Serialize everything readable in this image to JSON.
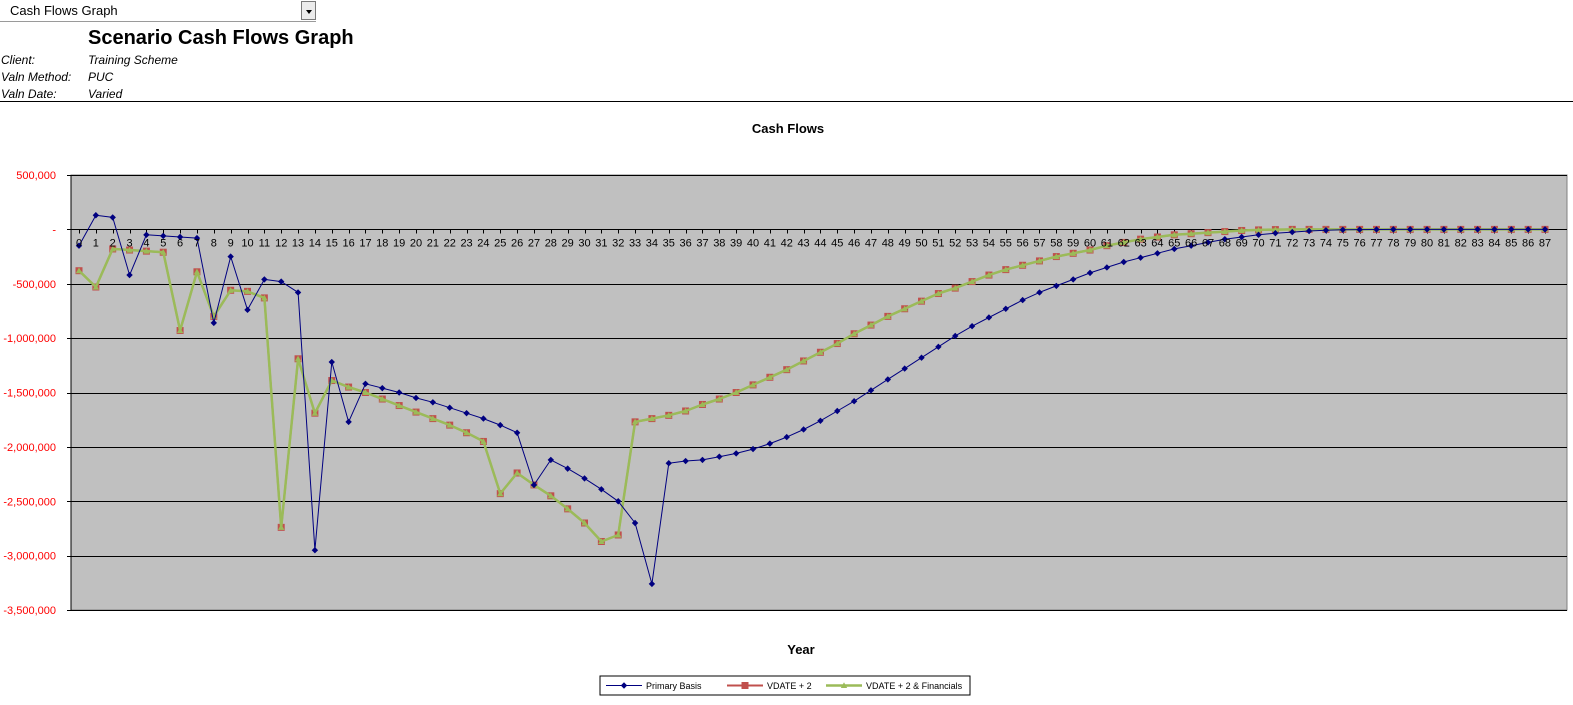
{
  "toolbar": {
    "dropdown_label": "Cash Flows Graph"
  },
  "header": {
    "title": "Scenario Cash Flows Graph",
    "client_label": "Client:",
    "client_value": "Training Scheme",
    "method_label": "Valn Method:",
    "method_value": "PUC",
    "date_label": "Valn Date:",
    "date_value": "Varied"
  },
  "chart_data": {
    "type": "line",
    "title": "Cash Flows",
    "xlabel": "Year",
    "ylabel": "",
    "ylim": [
      -3500000,
      500000
    ],
    "yticks": [
      500000,
      0,
      -500000,
      -1000000,
      -1500000,
      -2000000,
      -2500000,
      -3000000,
      -3500000
    ],
    "ytick_labels": [
      "500,000",
      "-",
      "-500,000",
      "-1,000,000",
      "-1,500,000",
      "-2,000,000",
      "-2,500,000",
      "-3,000,000",
      "-3,500,000"
    ],
    "x": [
      0,
      1,
      2,
      3,
      4,
      5,
      6,
      7,
      8,
      9,
      10,
      11,
      12,
      13,
      14,
      15,
      16,
      17,
      18,
      19,
      20,
      21,
      22,
      23,
      24,
      25,
      26,
      27,
      28,
      29,
      30,
      31,
      32,
      33,
      34,
      35,
      36,
      37,
      38,
      39,
      40,
      41,
      42,
      43,
      44,
      45,
      46,
      47,
      48,
      49,
      50,
      51,
      52,
      53,
      54,
      55,
      56,
      57,
      58,
      59,
      60,
      61,
      62,
      63,
      64,
      65,
      66,
      67,
      68,
      69,
      70,
      71,
      72,
      73,
      74,
      75,
      76,
      77,
      78,
      79,
      80,
      81,
      82,
      83,
      84,
      85,
      86,
      87
    ],
    "grid": true,
    "legend": "bottom",
    "colors": {
      "plot_bg": "#c0c0c0",
      "primary": "#000080",
      "vdate2_line": "#c0504d",
      "vdate2_fin": "#9bbb59",
      "tick_y": "#ff0000"
    },
    "series": [
      {
        "name": "Primary Basis",
        "values": [
          -150000,
          130000,
          110000,
          -420000,
          -50000,
          -60000,
          -70000,
          -80000,
          -860000,
          -250000,
          -740000,
          -460000,
          -480000,
          -580000,
          -2950000,
          -1220000,
          -1770000,
          -1420000,
          -1460000,
          -1500000,
          -1550000,
          -1590000,
          -1640000,
          -1690000,
          -1740000,
          -1800000,
          -1870000,
          -2350000,
          -2120000,
          -2200000,
          -2290000,
          -2390000,
          -2500000,
          -2700000,
          -3260000,
          -2150000,
          -2130000,
          -2120000,
          -2090000,
          -2060000,
          -2020000,
          -1970000,
          -1910000,
          -1840000,
          -1760000,
          -1670000,
          -1580000,
          -1480000,
          -1380000,
          -1280000,
          -1180000,
          -1080000,
          -980000,
          -890000,
          -810000,
          -730000,
          -650000,
          -580000,
          -520000,
          -460000,
          -400000,
          -350000,
          -300000,
          -260000,
          -220000,
          -180000,
          -150000,
          -120000,
          -90000,
          -70000,
          -50000,
          -35000,
          -25000,
          -15000,
          -8000,
          -4000,
          -2000,
          -1000,
          0,
          0,
          0,
          0,
          0,
          0,
          0,
          0,
          0,
          0
        ]
      },
      {
        "name": "VDATE + 2",
        "values": [
          -380000,
          -530000,
          -180000,
          -190000,
          -200000,
          -210000,
          -930000,
          -390000,
          -800000,
          -560000,
          -570000,
          -630000,
          -2740000,
          -1190000,
          -1690000,
          -1390000,
          -1450000,
          -1500000,
          -1560000,
          -1620000,
          -1680000,
          -1740000,
          -1800000,
          -1870000,
          -1950000,
          -2430000,
          -2240000,
          -2350000,
          -2450000,
          -2570000,
          -2700000,
          -2870000,
          -2810000,
          -1770000,
          -1740000,
          -1710000,
          -1670000,
          -1610000,
          -1560000,
          -1500000,
          -1430000,
          -1360000,
          -1290000,
          -1210000,
          -1130000,
          -1050000,
          -960000,
          -880000,
          -800000,
          -730000,
          -660000,
          -590000,
          -540000,
          -480000,
          -420000,
          -370000,
          -330000,
          -290000,
          -250000,
          -220000,
          -190000,
          -150000,
          -120000,
          -90000,
          -70000,
          -50000,
          -40000,
          -30000,
          -20000,
          -10000,
          -5000,
          -2000,
          0,
          0,
          0,
          0,
          0,
          0,
          0,
          0,
          0,
          0,
          0,
          0,
          0,
          0,
          0,
          0
        ]
      },
      {
        "name": "VDATE + 2 & Financials",
        "values": [
          -380000,
          -530000,
          -180000,
          -190000,
          -200000,
          -210000,
          -930000,
          -390000,
          -800000,
          -560000,
          -570000,
          -630000,
          -2740000,
          -1190000,
          -1690000,
          -1390000,
          -1450000,
          -1500000,
          -1560000,
          -1620000,
          -1680000,
          -1740000,
          -1800000,
          -1870000,
          -1950000,
          -2430000,
          -2240000,
          -2350000,
          -2450000,
          -2570000,
          -2700000,
          -2870000,
          -2810000,
          -1770000,
          -1740000,
          -1710000,
          -1670000,
          -1610000,
          -1560000,
          -1500000,
          -1430000,
          -1360000,
          -1290000,
          -1210000,
          -1130000,
          -1050000,
          -960000,
          -880000,
          -800000,
          -730000,
          -660000,
          -590000,
          -540000,
          -480000,
          -420000,
          -370000,
          -330000,
          -290000,
          -250000,
          -220000,
          -190000,
          -150000,
          -120000,
          -90000,
          -70000,
          -50000,
          -40000,
          -30000,
          -20000,
          -10000,
          -5000,
          -2000,
          0,
          0,
          0,
          0,
          0,
          0,
          0,
          0,
          0,
          0,
          0,
          0,
          0,
          0,
          0,
          0
        ]
      }
    ]
  }
}
